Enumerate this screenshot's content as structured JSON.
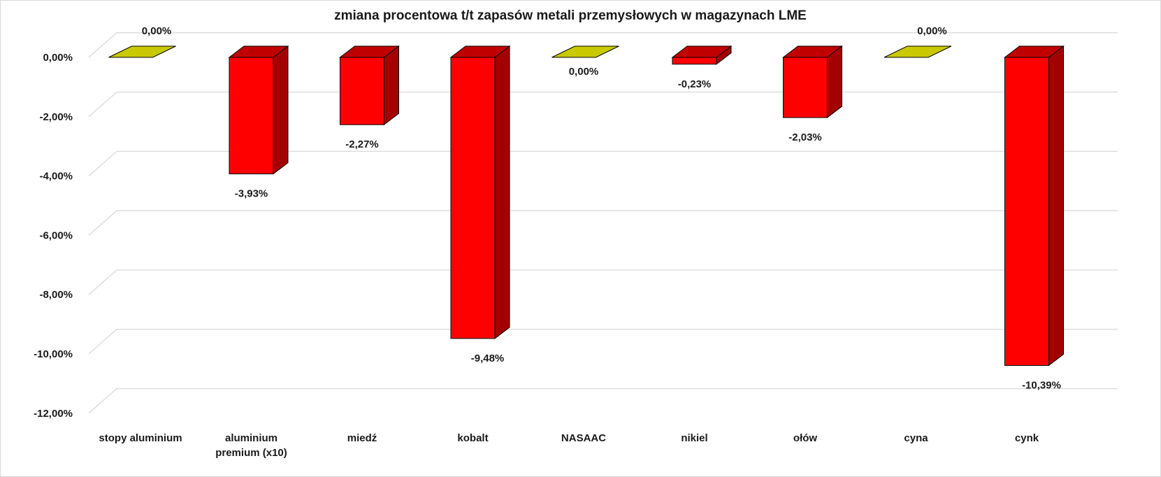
{
  "chart_data": {
    "type": "bar",
    "title": "zmiana procentowa t/t zapasów metali przemysłowych w magazynach LME",
    "categories": [
      "stopy aluminium",
      "aluminium premium (x10)",
      "miedź",
      "kobalt",
      "NASAAC",
      "nikiel",
      "ołów",
      "cyna",
      "cynk"
    ],
    "category_lines": [
      [
        "stopy aluminium"
      ],
      [
        "aluminium",
        "premium (x10)"
      ],
      [
        "miedź"
      ],
      [
        "kobalt"
      ],
      [
        "NASAAC"
      ],
      [
        "nikiel"
      ],
      [
        "ołów"
      ],
      [
        "cyna"
      ],
      [
        "cynk"
      ]
    ],
    "values": [
      0.0,
      -3.93,
      -2.27,
      -9.48,
      0.0,
      -0.23,
      -2.03,
      0.0,
      -10.39
    ],
    "value_labels": [
      "0,00%",
      "-3,93%",
      "-2,27%",
      "-9,48%",
      "0,00%",
      "-0,23%",
      "-2,03%",
      "0,00%",
      "-10,39%"
    ],
    "ylim": [
      -12,
      0
    ],
    "yticks": [
      0,
      -2,
      -4,
      -6,
      -8,
      -10,
      -12
    ],
    "ytick_labels": [
      "0,00%",
      "-2,00%",
      "-4,00%",
      "-6,00%",
      "-8,00%",
      "-10,00%",
      "-12,00%"
    ],
    "grid": true,
    "xlabel": "",
    "ylabel": "",
    "colors": {
      "negative_front": "#ff0000",
      "negative_side": "#a50000",
      "negative_top": "#c00000",
      "zero_fill": "#c9c900",
      "gridline": "#d9d9d9",
      "outline": "#000000"
    }
  }
}
